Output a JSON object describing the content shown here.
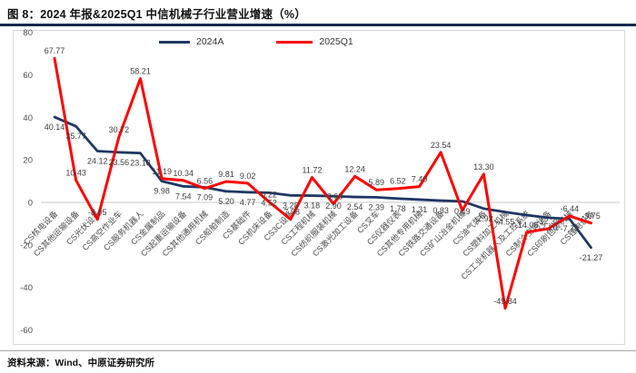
{
  "figure": {
    "title": "图 8：2024 年报&2025Q1 中信机械子行业营业增速（%）",
    "source": "资料来源：Wind、中原证券研究所"
  },
  "colors": {
    "series_2024": "#1f3864",
    "series_2025": "#ff0000",
    "gridline": "#c9c9c9",
    "frame": "#d9d9d9",
    "data_label": "#404040",
    "axis_label": "#4d4d4d"
  },
  "chart_data": {
    "type": "line",
    "title": "图 8：2024 年报&2025Q1 中信机械子行业营业增速（%）",
    "ylim": [
      -60,
      80
    ],
    "yticks": [
      80,
      60,
      40,
      20,
      0,
      -20,
      -40,
      -60
    ],
    "grid": "zero-line-only",
    "legend_position": "top-center",
    "categories": [
      "CS核电设备",
      "CS其他运输设备",
      "CS光伏设备",
      "CS高空作业车",
      "CS服务机器人",
      "CS金属制品",
      "CS起重运输设备",
      "CS其他通用机械",
      "CS船舶制造",
      "CS基础件",
      "CS机床设备",
      "CS3C设备",
      "CS工程机械",
      "CS纺织服装机械",
      "CS激光加工设备",
      "CS叉车",
      "CS仪器仪表",
      "CS其他专用机械",
      "CS铁路交通设备",
      "CS矿山冶金机械",
      "CS油气装备",
      "CS塑料加工机械",
      "CS工业机器人及工控系统",
      "CS制冷空调设备",
      "CS印刷包装机械",
      "CS锂电设备"
    ],
    "series": [
      {
        "name": "2024A",
        "values": [
          40.14,
          35.77,
          24.12,
          23.56,
          23.18,
          9.98,
          7.54,
          7.09,
          5.2,
          4.77,
          4.52,
          3.28,
          3.18,
          2.9,
          2.54,
          2.39,
          1.78,
          1.31,
          0.83,
          0.49,
          -2.92,
          -4.55,
          -6.0,
          -7.2,
          -7.78,
          -21.27
        ],
        "labels": [
          "40.14",
          "35.77",
          "24.12",
          "23.56",
          "23.18",
          "9.98",
          "7.54",
          "7.09",
          "5.20",
          "4.77",
          "4.52",
          "3.28",
          "3.18",
          "2.90",
          "2.54",
          "2.39",
          "1.78",
          "1.31",
          "0.83",
          "0.49",
          "-2.92",
          "-4.55",
          "",
          "-7.20",
          "-7.78",
          "-21.27"
        ]
      },
      {
        "name": "2025Q1",
        "values": [
          67.77,
          10.43,
          -8.05,
          30.72,
          58.21,
          11.19,
          10.34,
          6.56,
          9.81,
          9.02,
          0.22,
          -7.98,
          11.72,
          -0.68,
          12.24,
          5.89,
          6.52,
          7.4,
          23.54,
          -3.8,
          13.3,
          -49.84,
          -14.06,
          -12.38,
          -6.44,
          -9.75
        ],
        "labels": [
          "67.77",
          "10.43",
          "-8.05",
          "30.72",
          "58.21",
          "11.19",
          "10.34",
          "6.56",
          "9.81",
          "9.02",
          "0.22",
          "-7.98",
          "11.72",
          "-0.68",
          "12.24",
          "5.89",
          "6.52",
          "7.40",
          "23.54",
          "",
          "13.30",
          "-49.84",
          "-14.06",
          "-12.38",
          "-6.44",
          "-9.75"
        ]
      }
    ]
  }
}
